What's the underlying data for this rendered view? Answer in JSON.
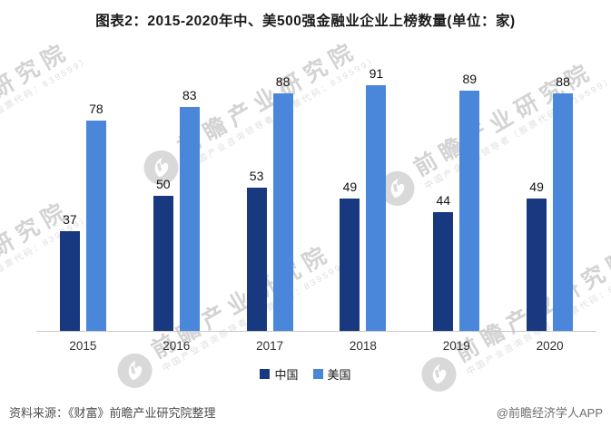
{
  "title": "图表2：2015-2020年中、美500强金融业企业上榜数量(单位：家)",
  "chart_data": {
    "type": "bar",
    "categories": [
      "2015",
      "2016",
      "2017",
      "2018",
      "2019",
      "2020"
    ],
    "series": [
      {
        "name": "中国",
        "color": "#18397F",
        "values": [
          37,
          50,
          53,
          49,
          44,
          49
        ]
      },
      {
        "name": "美国",
        "color": "#4A87DB",
        "values": [
          78,
          83,
          88,
          91,
          89,
          88
        ]
      }
    ],
    "ylim": [
      0,
      95
    ],
    "grid": false,
    "legend_position": "bottom",
    "value_labels": true,
    "axis_line_color": "#c9c9c9"
  },
  "footer": {
    "source": "资料来源：《财富》前瞻产业研究院整理",
    "credit": "@前瞻经济学人APP"
  },
  "watermark": {
    "brand": "前瞻产业研究院",
    "tagline": "中国产业咨询领导者（股票代码：839599）",
    "logo": "qianzhan-logo",
    "color": "#d3d3d3"
  }
}
